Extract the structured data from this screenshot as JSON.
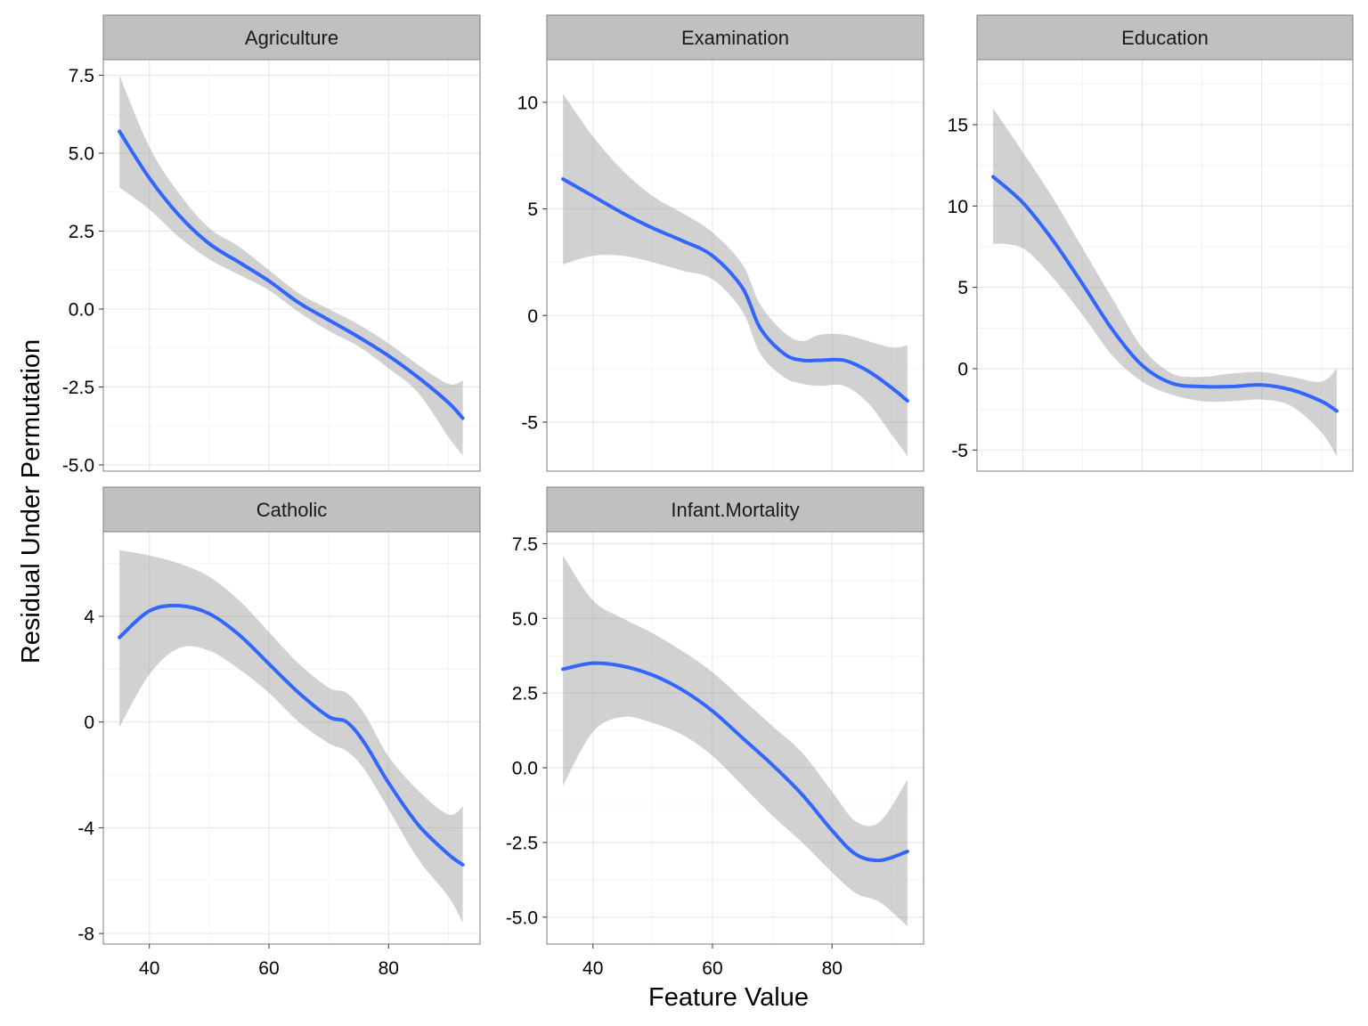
{
  "colors": {
    "line": "#3366FF",
    "ribbon": "#999999",
    "strip": "#C0C0C0",
    "border": "#7F7F7F",
    "grid": "#E6E6E6"
  },
  "chart_data": {
    "type": "line",
    "subtype": "faceted smooth with confidence band",
    "xlabel": "Feature Value",
    "ylabel": "Residual Under Permutation",
    "x_ticks": [
      "40",
      "60",
      "80"
    ],
    "x_tick_values": [
      40,
      60,
      80
    ],
    "xlim": [
      32.3,
      95.3
    ],
    "grid": true,
    "legend": "none",
    "facets": [
      {
        "name": "Agriculture",
        "ylim": [
          -5.2,
          8.0
        ],
        "y_ticks": [
          "7.5",
          "5.0",
          "2.5",
          "0.0",
          "-2.5",
          "-5.0"
        ],
        "y_tick_values": [
          7.5,
          5.0,
          2.5,
          0.0,
          -2.5,
          -5.0
        ],
        "x": [
          35,
          40,
          45,
          50,
          55,
          60,
          65,
          70,
          75,
          80,
          85,
          90,
          92.4
        ],
        "y": [
          5.7,
          4.2,
          3.0,
          2.1,
          1.5,
          0.9,
          0.2,
          -0.35,
          -0.9,
          -1.5,
          -2.2,
          -3.0,
          -3.5
        ],
        "ymin": [
          3.9,
          3.2,
          2.3,
          1.6,
          1.1,
          0.6,
          -0.1,
          -0.7,
          -1.2,
          -1.9,
          -2.7,
          -4.1,
          -4.7
        ],
        "ymax": [
          7.5,
          5.2,
          3.7,
          2.6,
          2.0,
          1.25,
          0.5,
          0.0,
          -0.5,
          -1.1,
          -1.8,
          -2.4,
          -2.3
        ]
      },
      {
        "name": "Examination",
        "ylim": [
          -7.3,
          12.0
        ],
        "y_ticks": [
          "10",
          "5",
          "0",
          "-5"
        ],
        "y_tick_values": [
          10,
          5,
          0,
          -5
        ],
        "x": [
          35,
          40,
          45,
          50,
          55,
          60,
          65,
          68,
          72,
          75,
          78,
          82,
          86,
          90,
          92.6
        ],
        "y": [
          6.4,
          5.6,
          4.8,
          4.1,
          3.5,
          2.8,
          1.3,
          -0.6,
          -1.8,
          -2.1,
          -2.1,
          -2.1,
          -2.6,
          -3.4,
          -4.0
        ],
        "ymin": [
          2.4,
          2.8,
          2.8,
          2.5,
          2.1,
          1.7,
          0.2,
          -1.8,
          -2.9,
          -3.2,
          -3.3,
          -3.3,
          -4.1,
          -5.6,
          -6.6
        ],
        "ymax": [
          10.4,
          8.4,
          6.8,
          5.6,
          4.8,
          3.9,
          2.4,
          0.5,
          -0.8,
          -1.2,
          -0.9,
          -0.9,
          -1.2,
          -1.5,
          -1.4
        ]
      },
      {
        "name": "Education",
        "ylim": [
          -6.3,
          19.0
        ],
        "y_ticks": [
          "15",
          "10",
          "5",
          "0",
          "-5"
        ],
        "y_tick_values": [
          15,
          10,
          5,
          0,
          -5
        ],
        "x": [
          35,
          40,
          45,
          50,
          55,
          60,
          65,
          70,
          75,
          80,
          85,
          90,
          92.6
        ],
        "y": [
          11.8,
          10.2,
          7.9,
          5.2,
          2.4,
          0.2,
          -0.9,
          -1.1,
          -1.1,
          -1.0,
          -1.3,
          -2.0,
          -2.6
        ],
        "ymin": [
          7.7,
          7.4,
          5.6,
          3.3,
          0.8,
          -0.8,
          -1.6,
          -2.0,
          -2.0,
          -1.9,
          -2.3,
          -3.9,
          -5.4
        ],
        "ymax": [
          16.0,
          13.3,
          10.5,
          7.4,
          4.3,
          1.3,
          -0.3,
          -0.5,
          -0.3,
          -0.2,
          -0.5,
          -0.8,
          0.0
        ]
      },
      {
        "name": "Catholic",
        "ylim": [
          -8.4,
          7.2
        ],
        "y_ticks": [
          "4",
          "0",
          "-4",
          "-8"
        ],
        "y_tick_values": [
          4,
          0,
          -4,
          -8
        ],
        "x": [
          35,
          40,
          45,
          50,
          55,
          60,
          65,
          70,
          73,
          76,
          80,
          85,
          90,
          92.4
        ],
        "y": [
          3.2,
          4.2,
          4.4,
          4.1,
          3.3,
          2.2,
          1.1,
          0.2,
          0.0,
          -0.8,
          -2.3,
          -3.9,
          -5.0,
          -5.4
        ],
        "ymin": [
          -0.2,
          1.8,
          2.8,
          2.7,
          2.0,
          1.1,
          0.0,
          -0.8,
          -1.1,
          -1.8,
          -3.3,
          -5.2,
          -6.6,
          -7.6
        ],
        "ymax": [
          6.5,
          6.3,
          6.0,
          5.5,
          4.6,
          3.4,
          2.2,
          1.3,
          1.1,
          0.3,
          -1.3,
          -2.6,
          -3.5,
          -3.2
        ]
      },
      {
        "name": "Infant.Mortality",
        "ylim": [
          -5.9,
          7.9
        ],
        "y_ticks": [
          "7.5",
          "5.0",
          "2.5",
          "0.0",
          "-2.5",
          "-5.0"
        ],
        "y_tick_values": [
          7.5,
          5.0,
          2.5,
          0.0,
          -2.5,
          -5.0
        ],
        "x": [
          35,
          40,
          45,
          50,
          55,
          60,
          65,
          70,
          75,
          80,
          84,
          88,
          92.6
        ],
        "y": [
          3.3,
          3.5,
          3.4,
          3.1,
          2.6,
          1.9,
          1.0,
          0.1,
          -0.9,
          -2.1,
          -2.9,
          -3.1,
          -2.8
        ],
        "ymin": [
          -0.6,
          1.2,
          1.7,
          1.5,
          1.1,
          0.4,
          -0.6,
          -1.6,
          -2.5,
          -3.5,
          -4.2,
          -4.5,
          -5.3
        ],
        "ymax": [
          7.1,
          5.6,
          5.0,
          4.5,
          3.9,
          3.2,
          2.3,
          1.4,
          0.5,
          -0.8,
          -1.8,
          -1.8,
          -0.4
        ]
      }
    ]
  }
}
